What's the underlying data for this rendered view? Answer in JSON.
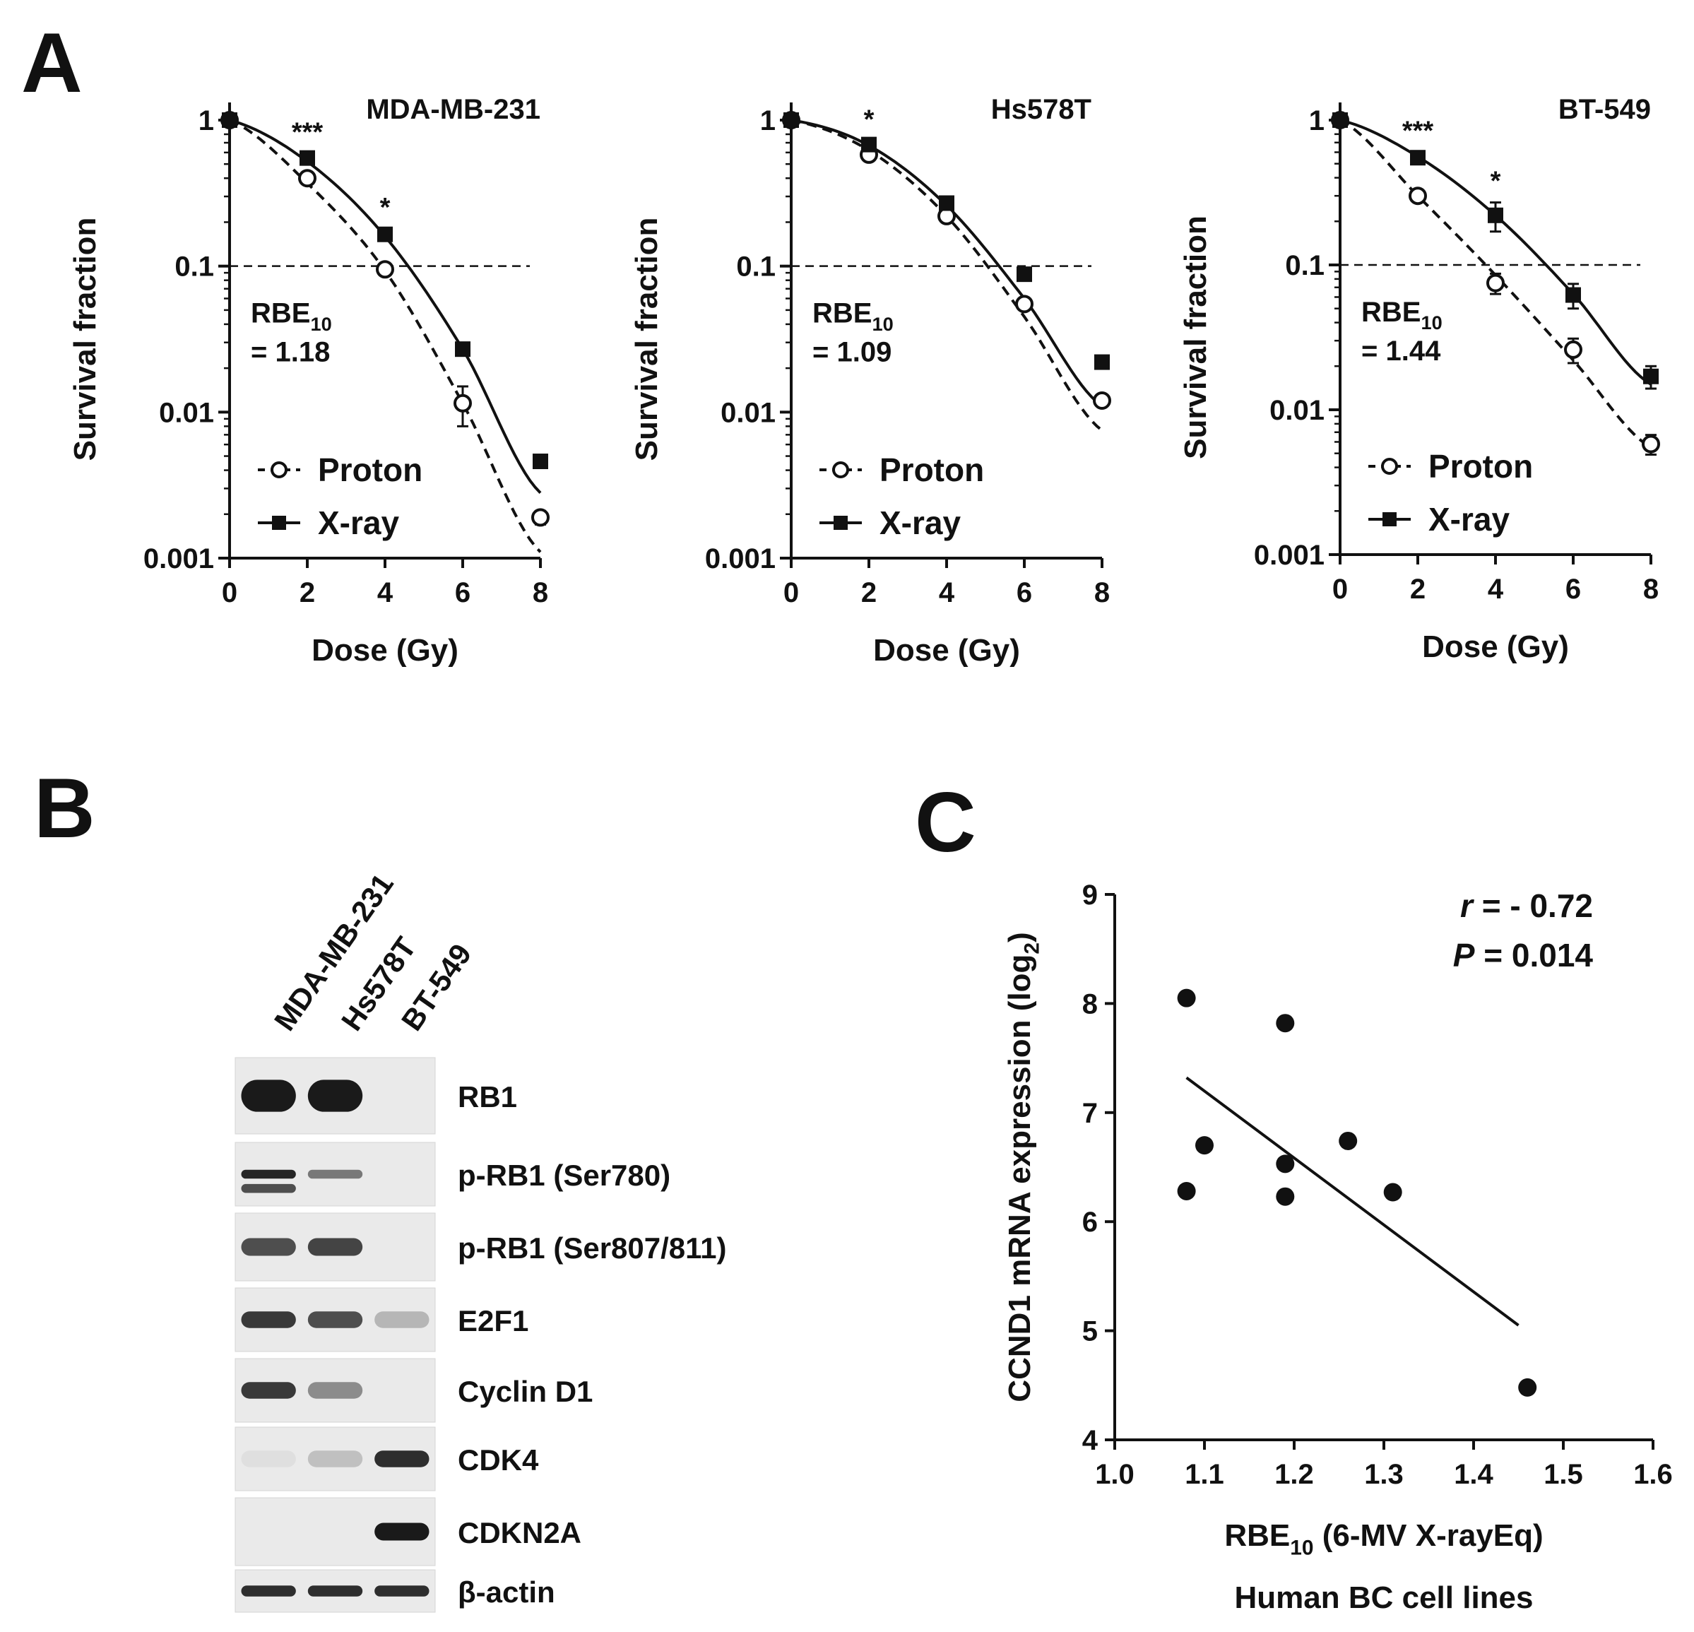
{
  "panel_letters": {
    "a": "A",
    "b": "B",
    "c": "C"
  },
  "panel_a": {
    "y_axis_label": "Survival fraction",
    "x_axis_label": "Dose (Gy)",
    "legend": {
      "proton": "Proton",
      "xray": "X-ray"
    }
  },
  "panel_b": {
    "columns": [
      "MDA-MB-231",
      "Hs578T",
      "BT-549"
    ],
    "proteins": [
      "RB1",
      "p-RB1 (Ser780)",
      "p-RB1 (Ser807/811)",
      "E2F1",
      "Cyclin D1",
      "CDK4",
      "CDKN2A",
      "β-actin"
    ],
    "band_intensity": [
      [
        1.0,
        1.0,
        0.0
      ],
      [
        0.95,
        0.55,
        0.0
      ],
      [
        0.75,
        0.8,
        0.0
      ],
      [
        0.85,
        0.75,
        0.25
      ],
      [
        0.85,
        0.45,
        0.0
      ],
      [
        0.05,
        0.2,
        0.9
      ],
      [
        0.0,
        0.0,
        1.0
      ],
      [
        0.9,
        0.9,
        0.9
      ]
    ],
    "band_color": "#1a1a1a"
  },
  "chart_data": [
    {
      "type": "line",
      "title": "MDA-MB-231",
      "xlabel": "Dose (Gy)",
      "ylabel": "Survival fraction",
      "log_y": true,
      "xlim": [
        0,
        8
      ],
      "ylim": [
        0.001,
        1
      ],
      "x_ticks": [
        "0",
        "2",
        "4",
        "6",
        "8"
      ],
      "y_ticks": [
        "0.001",
        "0.01",
        "0.1",
        "1"
      ],
      "annotation_main": "RBE",
      "annotation_sub": "10",
      "annotation_value": "= 1.18",
      "significance": [
        {
          "x": 2,
          "label": "***"
        },
        {
          "x": 4,
          "label": "*"
        }
      ],
      "reference_line": 0.1,
      "x": [
        0,
        2,
        4,
        6,
        8
      ],
      "series": [
        {
          "name": "Proton",
          "values": [
            1.0,
            0.4,
            0.095,
            0.0115,
            0.0019
          ],
          "err": [
            0,
            0.03,
            0.008,
            0.0035,
            0.0002
          ],
          "marker": "open-circle",
          "line": "dashed",
          "fit": [
            1.0,
            0.37,
            0.093,
            0.0115,
            0.0011
          ]
        },
        {
          "name": "X-ray",
          "values": [
            1.0,
            0.55,
            0.165,
            0.027,
            0.0046
          ],
          "err": [
            0,
            0.04,
            0.015,
            0.002,
            0.0004
          ],
          "marker": "filled-square",
          "line": "solid",
          "fit": [
            1.0,
            0.52,
            0.16,
            0.027,
            0.0028
          ]
        }
      ]
    },
    {
      "type": "line",
      "title": "Hs578T",
      "xlabel": "Dose (Gy)",
      "ylabel": "Survival fraction",
      "log_y": true,
      "xlim": [
        0,
        8
      ],
      "ylim": [
        0.001,
        1
      ],
      "x_ticks": [
        "0",
        "2",
        "4",
        "6",
        "8"
      ],
      "y_ticks": [
        "0.001",
        "0.01",
        "0.1",
        "1"
      ],
      "annotation_main": "RBE",
      "annotation_sub": "10",
      "annotation_value": "= 1.09",
      "significance": [
        {
          "x": 2,
          "label": "*"
        }
      ],
      "reference_line": 0.1,
      "x": [
        0,
        2,
        4,
        6,
        8
      ],
      "series": [
        {
          "name": "Proton",
          "values": [
            1.0,
            0.58,
            0.22,
            0.055,
            0.012
          ],
          "err": [
            0,
            0.03,
            0.015,
            0.004,
            0.001
          ],
          "marker": "open-circle",
          "line": "dashed",
          "fit": [
            1.0,
            0.62,
            0.22,
            0.045,
            0.0075
          ]
        },
        {
          "name": "X-ray",
          "values": [
            1.0,
            0.68,
            0.27,
            0.088,
            0.022
          ],
          "err": [
            0,
            0.04,
            0.02,
            0.005,
            0.002
          ],
          "marker": "filled-square",
          "line": "solid",
          "fit": [
            1.0,
            0.67,
            0.26,
            0.06,
            0.011
          ]
        }
      ]
    },
    {
      "type": "line",
      "title": "BT-549",
      "xlabel": "Dose (Gy)",
      "ylabel": "Survival fraction",
      "log_y": true,
      "xlim": [
        0,
        8
      ],
      "ylim": [
        0.001,
        1
      ],
      "x_ticks": [
        "0",
        "2",
        "4",
        "6",
        "8"
      ],
      "y_ticks": [
        "0.001",
        "0.01",
        "0.1",
        "1"
      ],
      "annotation_main": "RBE",
      "annotation_sub": "10",
      "annotation_value": "= 1.44",
      "significance": [
        {
          "x": 2,
          "label": "***"
        },
        {
          "x": 4,
          "label": "*"
        }
      ],
      "reference_line": 0.1,
      "x": [
        0,
        2,
        4,
        6,
        8
      ],
      "series": [
        {
          "name": "Proton",
          "values": [
            1.0,
            0.3,
            0.075,
            0.026,
            0.0058
          ],
          "err": [
            0,
            0.02,
            0.012,
            0.005,
            0.0009
          ],
          "marker": "open-circle",
          "line": "dashed",
          "fit": [
            1.0,
            0.3,
            0.085,
            0.022,
            0.0055
          ]
        },
        {
          "name": "X-ray",
          "values": [
            1.0,
            0.55,
            0.22,
            0.062,
            0.017
          ],
          "err": [
            0,
            0.05,
            0.05,
            0.012,
            0.003
          ],
          "marker": "filled-square",
          "line": "solid",
          "fit": [
            1.0,
            0.56,
            0.22,
            0.063,
            0.015
          ]
        }
      ]
    },
    {
      "type": "scatter",
      "xlabel_main": "RBE",
      "xlabel_sub": "10",
      "xlabel_rest": " (6-MV X-rayEq)",
      "xlabel2": "Human BC cell lines",
      "ylabel_main": "CCND1 mRNA expression (log",
      "ylabel_sub": "2",
      "ylabel_close": ")",
      "xlim": [
        1.0,
        1.6
      ],
      "ylim": [
        4,
        9
      ],
      "x_ticks": [
        "1.0",
        "1.1",
        "1.2",
        "1.3",
        "1.4",
        "1.5",
        "1.6"
      ],
      "y_ticks": [
        "4",
        "5",
        "6",
        "7",
        "8",
        "9"
      ],
      "stat_r_label": "r",
      "stat_r_value": " =  - 0.72",
      "stat_p_label": "P",
      "stat_p_value": " = 0.014",
      "points": [
        [
          1.08,
          8.05
        ],
        [
          1.08,
          6.28
        ],
        [
          1.1,
          6.7
        ],
        [
          1.19,
          7.82
        ],
        [
          1.19,
          6.53
        ],
        [
          1.19,
          6.23
        ],
        [
          1.26,
          6.74
        ],
        [
          1.31,
          6.27
        ],
        [
          1.46,
          4.48
        ]
      ],
      "regression": [
        [
          1.08,
          7.32
        ],
        [
          1.45,
          5.05
        ]
      ]
    }
  ]
}
